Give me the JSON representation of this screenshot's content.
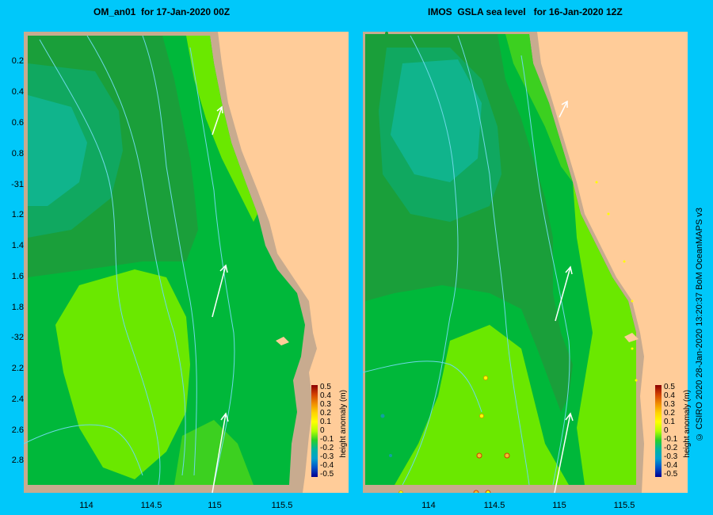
{
  "left_panel": {
    "title": "OM_an01  for 17-Jan-2020 00Z"
  },
  "right_panel": {
    "title": "IMOS  GSLA sea level   for 16-Jan-2020 12Z"
  },
  "y_axis_labels": [
    "0.2",
    "0.4",
    "0.6",
    "0.8",
    "-31",
    "1.2",
    "1.4",
    "1.6",
    "1.8",
    "-32",
    "2.2",
    "2.4",
    "2.6",
    "2.8"
  ],
  "left_x_axis_labels": [
    "114",
    "114.5",
    "115",
    "115.5"
  ],
  "right_x_axis_labels": [
    "114",
    "114.5",
    "115",
    "115.5"
  ],
  "colorbar": {
    "ticks": [
      "0.5",
      "0.4",
      "0.3",
      "0.2",
      "0.1",
      "0",
      "-0.1",
      "-0.2",
      "-0.3",
      "-0.4",
      "-0.5"
    ],
    "label": "height anomaly (m)",
    "colors": [
      "#8b0000",
      "#d24000",
      "#f08c00",
      "#ffd200",
      "#ffff00",
      "#b4ff00",
      "#28d028",
      "#00b4a0",
      "#00a0d0",
      "#0050c8",
      "#000090"
    ]
  },
  "credit": "© CSIRO 2020   28-Jan-2020 13:20:37 BoM OceanMAPS v3",
  "colors": {
    "background": "#00c8fa",
    "land": "#ffcc99",
    "shelf": "#c8ab8f",
    "level_neg_0_1": "#1a9f3a",
    "level_0": "#00b83a",
    "level_pos_0_05": "#3cd020",
    "level_pos_0_1": "#6ae800",
    "level_neg_0_15": "#10b48c",
    "level_neg_0_1b": "#00a855"
  }
}
